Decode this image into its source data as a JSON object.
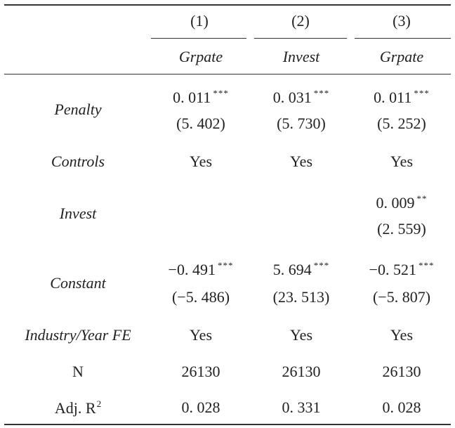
{
  "table": {
    "columns": [
      {
        "num": "(1)",
        "dep": "Grpate"
      },
      {
        "num": "(2)",
        "dep": "Invest"
      },
      {
        "num": "(3)",
        "dep": "Grpate"
      }
    ],
    "rows": {
      "penalty": {
        "label": "Penalty",
        "coef": [
          {
            "value": "0. 011",
            "stars": "***"
          },
          {
            "value": "0. 031",
            "stars": "***"
          },
          {
            "value": "0. 011",
            "stars": "***"
          }
        ],
        "tstat": [
          "(5. 402)",
          "(5. 730)",
          "(5. 252)"
        ]
      },
      "controls": {
        "label": "Controls",
        "values": [
          "Yes",
          "Yes",
          "Yes"
        ]
      },
      "invest": {
        "label": "Invest",
        "coef3": {
          "value": "0. 009",
          "stars": "**"
        },
        "tstat3": "(2. 559)"
      },
      "constant": {
        "label": "Constant",
        "coef": [
          {
            "value": "−0. 491",
            "stars": "***"
          },
          {
            "value": "5. 694",
            "stars": "***"
          },
          {
            "value": "−0. 521",
            "stars": "***"
          }
        ],
        "tstat": [
          "(−5. 486)",
          "(23. 513)",
          "(−5. 807)"
        ]
      },
      "fe": {
        "label": "Industry/Year FE",
        "values": [
          "Yes",
          "Yes",
          "Yes"
        ]
      },
      "n": {
        "label": "N",
        "values": [
          "26130",
          "26130",
          "26130"
        ]
      },
      "adjr2": {
        "label": "Adj. R",
        "label_sup": "2",
        "values": [
          "0. 028",
          "0. 331",
          "0. 028"
        ]
      }
    }
  }
}
